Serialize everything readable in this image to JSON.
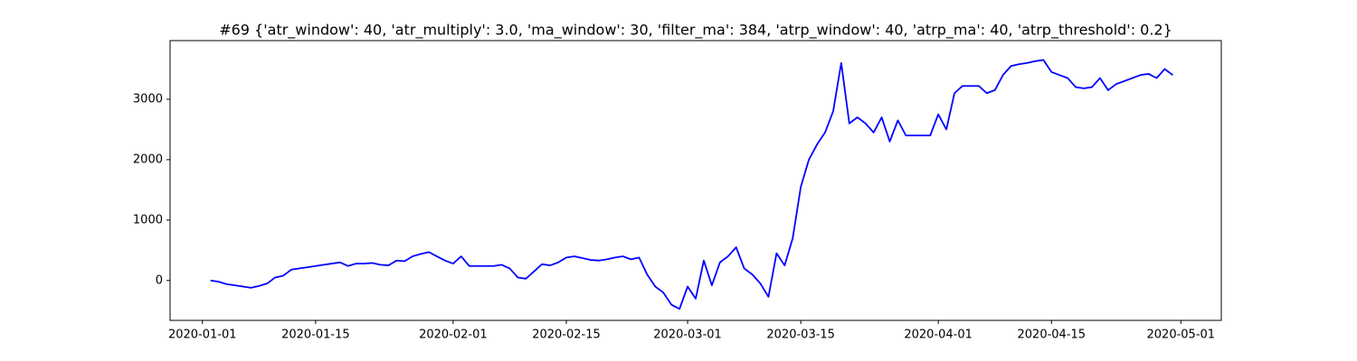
{
  "chart_data": {
    "type": "line",
    "title": "#69 {'atr_window': 40, 'atr_multiply': 3.0, 'ma_window': 30, 'filter_ma': 384, 'atrp_window': 40, 'atrp_ma': 40, 'atrp_threshold': 0.2}",
    "color": "blue",
    "x": [
      "2020-01-02",
      "2020-01-03",
      "2020-01-04",
      "2020-01-05",
      "2020-01-06",
      "2020-01-07",
      "2020-01-08",
      "2020-01-09",
      "2020-01-10",
      "2020-01-11",
      "2020-01-12",
      "2020-01-13",
      "2020-01-14",
      "2020-01-15",
      "2020-01-16",
      "2020-01-17",
      "2020-01-18",
      "2020-01-19",
      "2020-01-20",
      "2020-01-21",
      "2020-01-22",
      "2020-01-23",
      "2020-01-24",
      "2020-01-25",
      "2020-01-26",
      "2020-01-27",
      "2020-01-28",
      "2020-01-29",
      "2020-01-30",
      "2020-01-31",
      "2020-02-01",
      "2020-02-02",
      "2020-02-03",
      "2020-02-04",
      "2020-02-05",
      "2020-02-06",
      "2020-02-07",
      "2020-02-08",
      "2020-02-09",
      "2020-02-10",
      "2020-02-11",
      "2020-02-12",
      "2020-02-13",
      "2020-02-14",
      "2020-02-15",
      "2020-02-16",
      "2020-02-17",
      "2020-02-18",
      "2020-02-19",
      "2020-02-20",
      "2020-02-21",
      "2020-02-22",
      "2020-02-23",
      "2020-02-24",
      "2020-02-25",
      "2020-02-26",
      "2020-02-27",
      "2020-02-28",
      "2020-02-29",
      "2020-03-01",
      "2020-03-02",
      "2020-03-03",
      "2020-03-04",
      "2020-03-05",
      "2020-03-06",
      "2020-03-07",
      "2020-03-08",
      "2020-03-09",
      "2020-03-10",
      "2020-03-11",
      "2020-03-12",
      "2020-03-13",
      "2020-03-14",
      "2020-03-15",
      "2020-03-16",
      "2020-03-17",
      "2020-03-18",
      "2020-03-19",
      "2020-03-20",
      "2020-03-21",
      "2020-03-22",
      "2020-03-23",
      "2020-03-24",
      "2020-03-25",
      "2020-03-26",
      "2020-03-27",
      "2020-03-28",
      "2020-03-29",
      "2020-03-30",
      "2020-03-31",
      "2020-04-01",
      "2020-04-02",
      "2020-04-03",
      "2020-04-04",
      "2020-04-05",
      "2020-04-06",
      "2020-04-07",
      "2020-04-08",
      "2020-04-09",
      "2020-04-10",
      "2020-04-11",
      "2020-04-12",
      "2020-04-13",
      "2020-04-14",
      "2020-04-15",
      "2020-04-16",
      "2020-04-17",
      "2020-04-18",
      "2020-04-19",
      "2020-04-20",
      "2020-04-21",
      "2020-04-22",
      "2020-04-23",
      "2020-04-24",
      "2020-04-25",
      "2020-04-26",
      "2020-04-27",
      "2020-04-28",
      "2020-04-29",
      "2020-04-30"
    ],
    "values": [
      0,
      -20,
      -60,
      -80,
      -100,
      -120,
      -90,
      -50,
      50,
      80,
      180,
      200,
      220,
      240,
      260,
      280,
      300,
      240,
      280,
      280,
      290,
      260,
      250,
      330,
      320,
      400,
      440,
      470,
      400,
      330,
      280,
      400,
      240,
      240,
      240,
      240,
      260,
      200,
      50,
      30,
      150,
      270,
      250,
      300,
      380,
      400,
      370,
      340,
      330,
      350,
      380,
      400,
      350,
      380,
      100,
      -100,
      -200,
      -400,
      -470,
      -100,
      -300,
      330,
      -80,
      300,
      400,
      550,
      200,
      100,
      -50,
      -270,
      450,
      250,
      700,
      1550,
      2000,
      2250,
      2450,
      2800,
      3600,
      2600,
      2700,
      2600,
      2450,
      2700,
      2300,
      2650,
      2400,
      2400,
      2400,
      2400,
      2750,
      2500,
      3100,
      3220,
      3220,
      3220,
      3100,
      3150,
      3400,
      3550,
      3580,
      3600,
      3630,
      3650,
      3450,
      3400,
      3350,
      3200,
      3180,
      3200,
      3350,
      3150,
      3250,
      3300,
      3350,
      3400,
      3420,
      3350,
      3500,
      3400
    ],
    "xlim": [
      "2019-12-28",
      "2020-05-06"
    ],
    "xticks": [
      "2020-01-01",
      "2020-01-15",
      "2020-02-01",
      "2020-02-15",
      "2020-03-01",
      "2020-03-15",
      "2020-04-01",
      "2020-04-15",
      "2020-05-01"
    ],
    "ylim": [
      -660,
      3970
    ],
    "yticks": [
      0,
      1000,
      2000,
      3000
    ]
  }
}
